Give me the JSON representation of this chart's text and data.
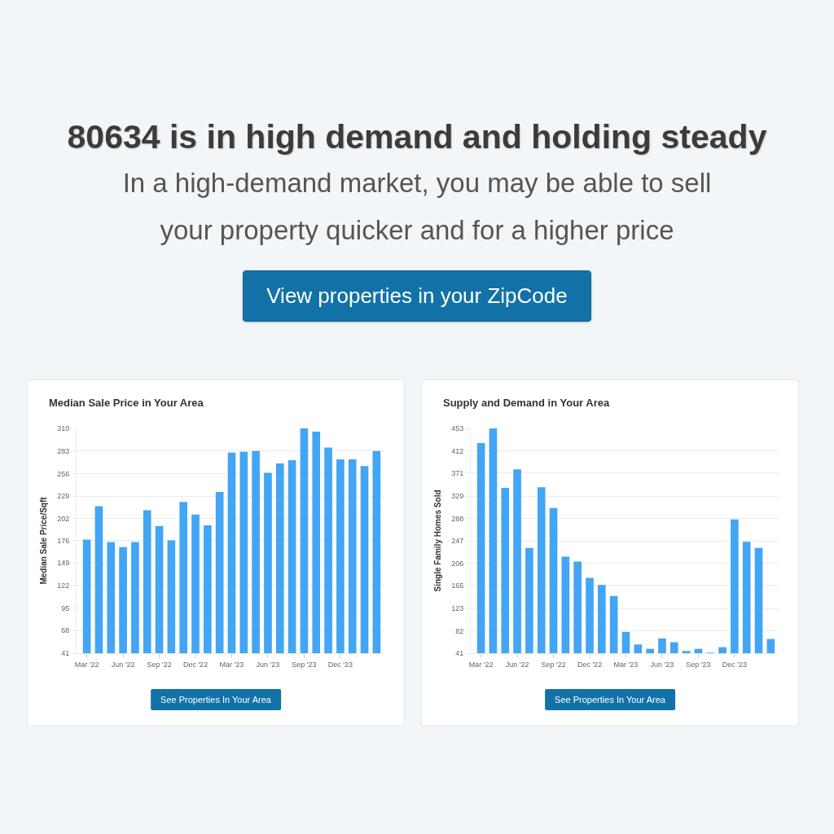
{
  "chart_data": [
    {
      "type": "other",
      "title": "80634 is in high demand and holding steady",
      "subtitle": "In a high-demand market, you may be able to sell your property quicker and for a higher price",
      "annotations": [
        "View properties in your ZipCode"
      ]
    },
    {
      "type": "bar",
      "title": "Median Sale Price in Your Area",
      "ylabel": "Median Sale Price/Sqft",
      "categories": [
        "Mar '22",
        null,
        null,
        "Jun '22",
        null,
        null,
        "Sep '22",
        null,
        null,
        "Dec '22",
        null,
        null,
        "Mar '23",
        null,
        null,
        "Jun '23",
        null,
        null,
        "Sep '23",
        null,
        null,
        "Dec '23",
        null,
        null,
        null
      ],
      "values": [
        177,
        217,
        174,
        168,
        174,
        212,
        193,
        176,
        222,
        207,
        194,
        234,
        281,
        282,
        283,
        257,
        268,
        272,
        310,
        306,
        287,
        273,
        273,
        265,
        283
      ],
      "color": "#42a5f5",
      "ylim": [
        41,
        310
      ],
      "yticks": [
        41,
        68,
        95,
        122,
        149,
        176,
        202,
        229,
        256,
        283,
        310
      ],
      "grid": "y",
      "annotations": [
        "See Properties In Your Area"
      ]
    },
    {
      "type": "bar",
      "title": "Supply and Demand in Your Area",
      "ylabel": "Single Family Homes Sold",
      "categories": [
        "Mar '22",
        null,
        null,
        "Jun '22",
        null,
        null,
        "Sep '22",
        null,
        null,
        "Dec '22",
        null,
        null,
        "Mar '23",
        null,
        null,
        "Jun '23",
        null,
        null,
        "Sep '23",
        null,
        null,
        "Dec '23",
        null,
        null,
        null
      ],
      "values": [
        426,
        453,
        344,
        378,
        234,
        345,
        307,
        218,
        209,
        179,
        166,
        146,
        80,
        57,
        49,
        68,
        61,
        45,
        49,
        42,
        52,
        286,
        245,
        234,
        67
      ],
      "color": "#42a5f5",
      "ylim": [
        41,
        453
      ],
      "yticks": [
        41,
        82,
        123,
        165,
        206,
        247,
        288,
        329,
        371,
        412,
        453
      ],
      "grid": "y",
      "annotations": [
        "See Properties In Your Area"
      ]
    }
  ]
}
